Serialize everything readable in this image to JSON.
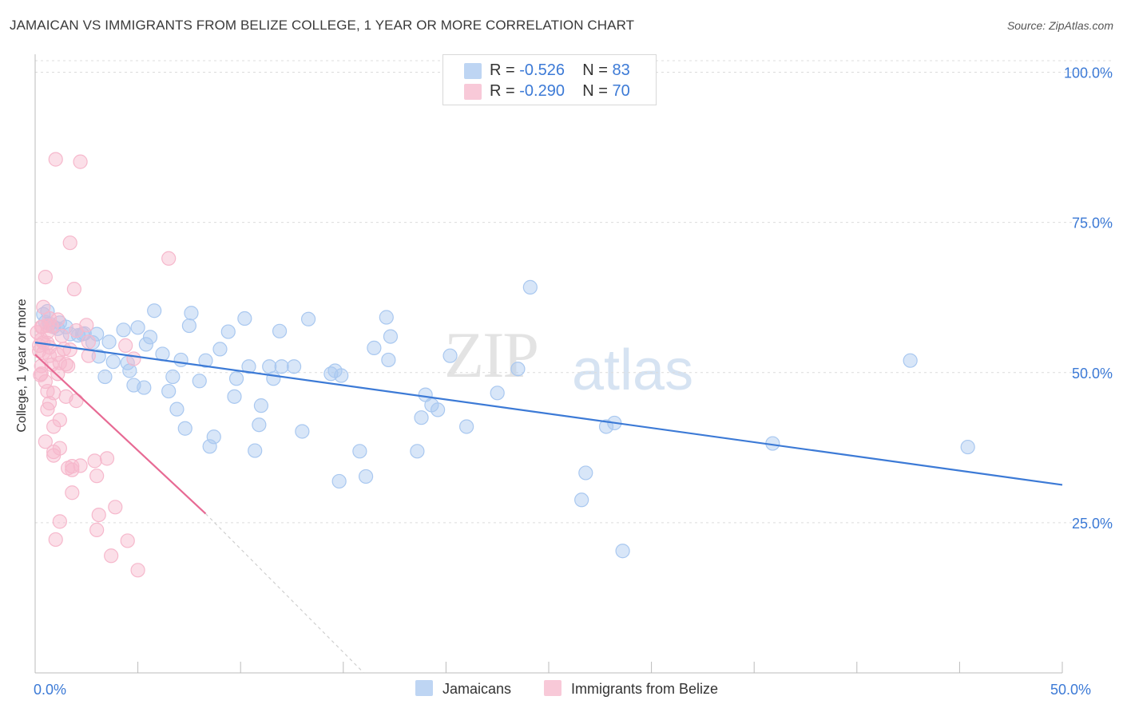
{
  "title": "JAMAICAN VS IMMIGRANTS FROM BELIZE COLLEGE, 1 YEAR OR MORE CORRELATION CHART",
  "source": "Source: ZipAtlas.com",
  "watermark": {
    "zip": "ZIP",
    "atlas": "atlas"
  },
  "stats": [
    {
      "r_label": "R = ",
      "r_value": "-0.526",
      "n_label": "N = ",
      "n_value": "83",
      "color": "#a9c8f0"
    },
    {
      "r_label": "R = ",
      "r_value": "-0.290",
      "n_label": "N = ",
      "n_value": "70",
      "color": "#f6b8cc"
    }
  ],
  "legend": [
    {
      "label": "Jamaicans",
      "color": "#a9c8f0"
    },
    {
      "label": "Immigrants from Belize",
      "color": "#f6b8cc"
    }
  ],
  "chart_data": {
    "type": "scatter",
    "title": "JAMAICAN VS IMMIGRANTS FROM BELIZE COLLEGE, 1 YEAR OR MORE CORRELATION CHART",
    "xlabel": "",
    "ylabel": "College, 1 year or more",
    "xlim": [
      0,
      50
    ],
    "ylim": [
      0,
      100
    ],
    "x_tick_labels": [
      {
        "value": 0,
        "label": "0.0%"
      },
      {
        "value": 50,
        "label": "50.0%"
      }
    ],
    "y_tick_labels": [
      {
        "value": 100,
        "label": "100.0%"
      },
      {
        "value": 75,
        "label": "75.0%"
      },
      {
        "value": 50,
        "label": "50.0%"
      },
      {
        "value": 25,
        "label": "25.0%"
      }
    ],
    "series": [
      {
        "name": "Jamaicans",
        "color": "#3c7ad6",
        "fill": "#a9c8f0",
        "trend": {
          "x": [
            0,
            50
          ],
          "y": [
            55.0,
            31.3
          ],
          "dashed_to": null
        },
        "points": [
          [
            0.4,
            59.7
          ],
          [
            0.5,
            58.4
          ],
          [
            0.6,
            60.2
          ],
          [
            0.7,
            58.1
          ],
          [
            0.9,
            57.6
          ],
          [
            1.1,
            57.3
          ],
          [
            1.2,
            58.3
          ],
          [
            1.5,
            57.6
          ],
          [
            1.7,
            56.4
          ],
          [
            2.1,
            56.2
          ],
          [
            2.3,
            56.4
          ],
          [
            2.8,
            55.0
          ],
          [
            2.4,
            56.5
          ],
          [
            3.0,
            56.4
          ],
          [
            3.1,
            52.7
          ],
          [
            3.4,
            49.3
          ],
          [
            3.6,
            55.1
          ],
          [
            3.8,
            51.8
          ],
          [
            4.3,
            57.1
          ],
          [
            4.5,
            51.6
          ],
          [
            4.6,
            50.3
          ],
          [
            4.8,
            47.9
          ],
          [
            5.0,
            57.5
          ],
          [
            5.3,
            47.5
          ],
          [
            5.4,
            54.7
          ],
          [
            5.6,
            55.9
          ],
          [
            5.8,
            60.3
          ],
          [
            6.2,
            53.1
          ],
          [
            6.5,
            46.9
          ],
          [
            6.7,
            49.3
          ],
          [
            6.9,
            43.9
          ],
          [
            7.1,
            52.1
          ],
          [
            7.3,
            40.7
          ],
          [
            7.5,
            57.8
          ],
          [
            7.6,
            59.9
          ],
          [
            8.0,
            48.6
          ],
          [
            8.3,
            52.0
          ],
          [
            8.5,
            37.7
          ],
          [
            8.7,
            39.3
          ],
          [
            9.0,
            53.9
          ],
          [
            9.4,
            56.8
          ],
          [
            9.7,
            46.0
          ],
          [
            9.8,
            49.0
          ],
          [
            10.2,
            59.0
          ],
          [
            10.4,
            51.0
          ],
          [
            10.7,
            37.0
          ],
          [
            10.9,
            41.3
          ],
          [
            11.0,
            44.5
          ],
          [
            11.4,
            51.0
          ],
          [
            11.6,
            49.0
          ],
          [
            11.9,
            56.9
          ],
          [
            12.0,
            51.0
          ],
          [
            12.6,
            51.0
          ],
          [
            13.0,
            40.2
          ],
          [
            13.3,
            58.9
          ],
          [
            14.4,
            49.8
          ],
          [
            14.6,
            50.3
          ],
          [
            14.9,
            49.5
          ],
          [
            14.8,
            31.9
          ],
          [
            15.8,
            36.9
          ],
          [
            16.1,
            32.7
          ],
          [
            16.5,
            54.1
          ],
          [
            17.1,
            59.2
          ],
          [
            17.3,
            56.0
          ],
          [
            17.2,
            52.1
          ],
          [
            18.6,
            36.9
          ],
          [
            18.8,
            42.5
          ],
          [
            19.0,
            46.3
          ],
          [
            19.3,
            44.6
          ],
          [
            19.6,
            43.8
          ],
          [
            20.2,
            52.8
          ],
          [
            21.0,
            41.0
          ],
          [
            22.5,
            46.6
          ],
          [
            23.5,
            50.6
          ],
          [
            24.1,
            64.2
          ],
          [
            26.6,
            28.8
          ],
          [
            26.8,
            33.3
          ],
          [
            27.8,
            41.0
          ],
          [
            28.2,
            41.6
          ],
          [
            28.6,
            20.3
          ],
          [
            35.9,
            38.2
          ],
          [
            42.6,
            52.0
          ],
          [
            45.4,
            37.6
          ]
        ]
      },
      {
        "name": "Immigrants from Belize",
        "color": "#e76a94",
        "fill": "#f6b8cc",
        "trend": {
          "x": [
            0,
            8.3
          ],
          "y": [
            53.0,
            26.5
          ],
          "dashed_to": [
            16.0,
            0
          ]
        },
        "points": [
          [
            0.1,
            56.7
          ],
          [
            0.2,
            54.5
          ],
          [
            0.2,
            53.6
          ],
          [
            0.3,
            57.6
          ],
          [
            0.3,
            55.5
          ],
          [
            0.3,
            51.1
          ],
          [
            0.3,
            49.8
          ],
          [
            0.4,
            60.9
          ],
          [
            0.4,
            55.0
          ],
          [
            0.4,
            53.3
          ],
          [
            0.5,
            65.9
          ],
          [
            0.5,
            48.5
          ],
          [
            0.5,
            38.5
          ],
          [
            0.6,
            57.8
          ],
          [
            0.6,
            56.7
          ],
          [
            0.6,
            54.9
          ],
          [
            0.6,
            46.9
          ],
          [
            0.6,
            43.9
          ],
          [
            0.7,
            59.0
          ],
          [
            0.7,
            54.2
          ],
          [
            0.7,
            52.8
          ],
          [
            0.7,
            44.9
          ],
          [
            0.8,
            57.7
          ],
          [
            0.8,
            51.3
          ],
          [
            0.9,
            46.6
          ],
          [
            0.9,
            41.0
          ],
          [
            0.9,
            36.2
          ],
          [
            0.9,
            36.8
          ],
          [
            1.0,
            22.2
          ],
          [
            1.0,
            85.5
          ],
          [
            1.1,
            58.8
          ],
          [
            1.1,
            53.0
          ],
          [
            1.1,
            49.8
          ],
          [
            1.2,
            51.6
          ],
          [
            1.2,
            42.1
          ],
          [
            1.2,
            37.4
          ],
          [
            1.2,
            25.2
          ],
          [
            1.3,
            56.1
          ],
          [
            1.4,
            53.9
          ],
          [
            1.5,
            51.4
          ],
          [
            1.5,
            46.0
          ],
          [
            1.6,
            51.1
          ],
          [
            1.6,
            34.1
          ],
          [
            1.7,
            71.6
          ],
          [
            1.7,
            53.8
          ],
          [
            1.8,
            34.4
          ],
          [
            1.8,
            33.8
          ],
          [
            1.8,
            30.0
          ],
          [
            1.9,
            63.9
          ],
          [
            2.0,
            45.3
          ],
          [
            2.0,
            57.0
          ],
          [
            2.2,
            85.1
          ],
          [
            2.2,
            34.5
          ],
          [
            2.5,
            57.9
          ],
          [
            2.6,
            52.8
          ],
          [
            2.6,
            55.1
          ],
          [
            2.9,
            35.3
          ],
          [
            3.0,
            23.8
          ],
          [
            3.0,
            32.8
          ],
          [
            3.1,
            26.3
          ],
          [
            3.5,
            35.7
          ],
          [
            3.7,
            19.5
          ],
          [
            3.9,
            27.6
          ],
          [
            4.4,
            54.5
          ],
          [
            4.5,
            22.0
          ],
          [
            4.8,
            52.3
          ],
          [
            5.0,
            17.1
          ],
          [
            6.5,
            69.0
          ],
          [
            0.35,
            57.6
          ],
          [
            0.25,
            49.6
          ]
        ]
      }
    ]
  }
}
